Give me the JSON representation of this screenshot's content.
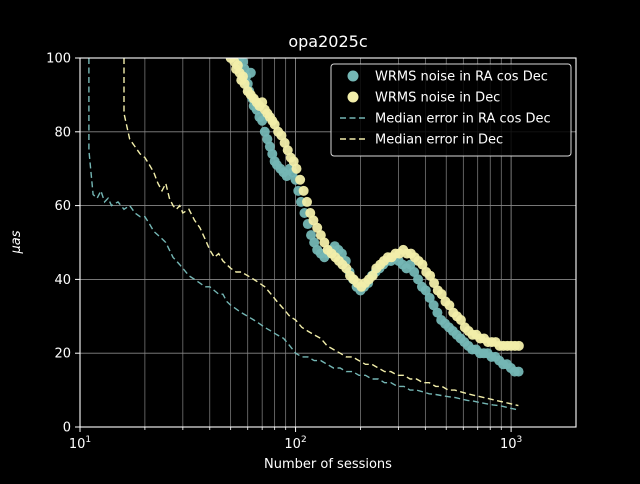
{
  "window": {
    "background": "#000000"
  },
  "chart_data": {
    "type": "scatter",
    "title": "opa2025c",
    "xlabel": "Number of sessions",
    "ylabel": "μas",
    "x_scale": "log",
    "xlim": [
      10,
      2000
    ],
    "ylim": [
      0,
      100
    ],
    "x_ticks": [
      10,
      100,
      1000
    ],
    "y_ticks": [
      0,
      20,
      40,
      60,
      80,
      100
    ],
    "grid": true,
    "legend_position": "upper right",
    "style": {
      "background": "#000000",
      "text_color": "#ffffff",
      "grid_color": "#888888",
      "spine_color": "#ffffff",
      "legend_edge": "#d9d9d9",
      "legend_fill": "#000000",
      "teal": "#74b6b4",
      "yellow": "#f2eeaa"
    },
    "series": [
      {
        "name": "WRMS noise in RA cos Dec",
        "kind": "scatter",
        "color": "#74b6b4",
        "points": [
          [
            55,
            100
          ],
          [
            57,
            99
          ],
          [
            58,
            97
          ],
          [
            59,
            95
          ],
          [
            60,
            93
          ],
          [
            61,
            91
          ],
          [
            62,
            96
          ],
          [
            63,
            89
          ],
          [
            64,
            87
          ],
          [
            65,
            88
          ],
          [
            66,
            86
          ],
          [
            68,
            84
          ],
          [
            70,
            83
          ],
          [
            72,
            80
          ],
          [
            74,
            78
          ],
          [
            76,
            76
          ],
          [
            78,
            74
          ],
          [
            80,
            72
          ],
          [
            82,
            71
          ],
          [
            85,
            70
          ],
          [
            88,
            69
          ],
          [
            91,
            68
          ],
          [
            94,
            70
          ],
          [
            97,
            69
          ],
          [
            100,
            67
          ],
          [
            103,
            64
          ],
          [
            106,
            61
          ],
          [
            110,
            58
          ],
          [
            114,
            55
          ],
          [
            118,
            52
          ],
          [
            122,
            50
          ],
          [
            126,
            48
          ],
          [
            131,
            47
          ],
          [
            136,
            46
          ],
          [
            141,
            47
          ],
          [
            146,
            48
          ],
          [
            152,
            49
          ],
          [
            158,
            48
          ],
          [
            164,
            47
          ],
          [
            171,
            45
          ],
          [
            178,
            42
          ],
          [
            185,
            40
          ],
          [
            192,
            38
          ],
          [
            200,
            37
          ],
          [
            208,
            38
          ],
          [
            217,
            39
          ],
          [
            226,
            41
          ],
          [
            235,
            42
          ],
          [
            245,
            43
          ],
          [
            255,
            44
          ],
          [
            266,
            45
          ],
          [
            277,
            45
          ],
          [
            289,
            46
          ],
          [
            301,
            45
          ],
          [
            314,
            44
          ],
          [
            327,
            43
          ],
          [
            341,
            44
          ],
          [
            355,
            42
          ],
          [
            370,
            40
          ],
          [
            386,
            38
          ],
          [
            402,
            37
          ],
          [
            419,
            35
          ],
          [
            437,
            33
          ],
          [
            455,
            31
          ],
          [
            474,
            29
          ],
          [
            494,
            28
          ],
          [
            515,
            27
          ],
          [
            537,
            26
          ],
          [
            559,
            25
          ],
          [
            583,
            24
          ],
          [
            607,
            23
          ],
          [
            633,
            22
          ],
          [
            660,
            21
          ],
          [
            688,
            21
          ],
          [
            717,
            20
          ],
          [
            747,
            20
          ],
          [
            778,
            20
          ],
          [
            811,
            19
          ],
          [
            845,
            19
          ],
          [
            881,
            18
          ],
          [
            918,
            17
          ],
          [
            957,
            17
          ],
          [
            997,
            16
          ],
          [
            1039,
            15
          ],
          [
            1083,
            15
          ]
        ]
      },
      {
        "name": "WRMS noise in Dec",
        "kind": "scatter",
        "color": "#f2eeaa",
        "points": [
          [
            50,
            100
          ],
          [
            52,
            99
          ],
          [
            53,
            97
          ],
          [
            54,
            98
          ],
          [
            55,
            96
          ],
          [
            56,
            94
          ],
          [
            57,
            95
          ],
          [
            58,
            93
          ],
          [
            60,
            91
          ],
          [
            62,
            90
          ],
          [
            64,
            89
          ],
          [
            66,
            88
          ],
          [
            68,
            87
          ],
          [
            70,
            88
          ],
          [
            72,
            86
          ],
          [
            74,
            85
          ],
          [
            76,
            84
          ],
          [
            78,
            83
          ],
          [
            80,
            82
          ],
          [
            83,
            80
          ],
          [
            86,
            79
          ],
          [
            89,
            77
          ],
          [
            92,
            75
          ],
          [
            95,
            73
          ],
          [
            98,
            72
          ],
          [
            101,
            70
          ],
          [
            105,
            67
          ],
          [
            109,
            64
          ],
          [
            113,
            61
          ],
          [
            117,
            58
          ],
          [
            121,
            56
          ],
          [
            126,
            54
          ],
          [
            131,
            52
          ],
          [
            136,
            50
          ],
          [
            141,
            48
          ],
          [
            147,
            47
          ],
          [
            153,
            46
          ],
          [
            159,
            45
          ],
          [
            165,
            44
          ],
          [
            172,
            43
          ],
          [
            179,
            41
          ],
          [
            186,
            40
          ],
          [
            194,
            39
          ],
          [
            202,
            38
          ],
          [
            210,
            39
          ],
          [
            219,
            40
          ],
          [
            228,
            41
          ],
          [
            237,
            43
          ],
          [
            247,
            44
          ],
          [
            257,
            45
          ],
          [
            268,
            46
          ],
          [
            279,
            46
          ],
          [
            291,
            47
          ],
          [
            303,
            47
          ],
          [
            316,
            48
          ],
          [
            329,
            47
          ],
          [
            343,
            47
          ],
          [
            357,
            46
          ],
          [
            372,
            45
          ],
          [
            388,
            44
          ],
          [
            404,
            42
          ],
          [
            421,
            41
          ],
          [
            439,
            39
          ],
          [
            457,
            37
          ],
          [
            476,
            36
          ],
          [
            496,
            34
          ],
          [
            517,
            33
          ],
          [
            539,
            31
          ],
          [
            561,
            30
          ],
          [
            585,
            29
          ],
          [
            610,
            27
          ],
          [
            635,
            26
          ],
          [
            662,
            25
          ],
          [
            690,
            25
          ],
          [
            719,
            24
          ],
          [
            749,
            24
          ],
          [
            781,
            23
          ],
          [
            814,
            23
          ],
          [
            848,
            23
          ],
          [
            884,
            22
          ],
          [
            921,
            22
          ],
          [
            960,
            22
          ],
          [
            1000,
            22
          ],
          [
            1042,
            22
          ],
          [
            1086,
            22
          ]
        ]
      },
      {
        "name": "Median error in RA cos Dec",
        "kind": "dashed-line",
        "color": "#74b6b4",
        "points": [
          [
            11,
            100
          ],
          [
            11,
            75
          ],
          [
            11.5,
            63
          ],
          [
            12,
            62
          ],
          [
            12.5,
            64
          ],
          [
            13,
            61
          ],
          [
            13.5,
            62
          ],
          [
            14,
            60
          ],
          [
            15,
            61
          ],
          [
            16,
            59
          ],
          [
            17,
            60
          ],
          [
            18,
            58
          ],
          [
            19,
            57
          ],
          [
            20,
            57
          ],
          [
            21,
            55
          ],
          [
            22,
            53
          ],
          [
            23,
            52
          ],
          [
            24,
            51
          ],
          [
            25,
            50
          ],
          [
            26,
            48
          ],
          [
            27,
            46
          ],
          [
            28,
            45
          ],
          [
            29,
            44
          ],
          [
            30,
            43
          ],
          [
            32,
            41
          ],
          [
            34,
            40
          ],
          [
            36,
            39
          ],
          [
            38,
            38
          ],
          [
            40,
            38
          ],
          [
            42,
            37
          ],
          [
            44,
            36
          ],
          [
            46,
            36
          ],
          [
            48,
            34
          ],
          [
            50,
            33
          ],
          [
            53,
            32
          ],
          [
            56,
            31
          ],
          [
            60,
            30
          ],
          [
            64,
            29
          ],
          [
            68,
            28
          ],
          [
            72,
            27
          ],
          [
            77,
            26
          ],
          [
            82,
            25
          ],
          [
            88,
            24
          ],
          [
            94,
            22
          ],
          [
            100,
            20
          ],
          [
            107,
            19
          ],
          [
            114,
            19
          ],
          [
            122,
            18
          ],
          [
            131,
            18
          ],
          [
            140,
            17
          ],
          [
            150,
            16
          ],
          [
            161,
            16
          ],
          [
            172,
            15
          ],
          [
            184,
            15
          ],
          [
            197,
            14
          ],
          [
            211,
            14
          ],
          [
            226,
            13
          ],
          [
            242,
            13
          ],
          [
            259,
            12
          ],
          [
            277,
            12
          ],
          [
            297,
            11
          ],
          [
            318,
            11
          ],
          [
            340,
            10
          ],
          [
            364,
            10
          ],
          [
            390,
            9.5
          ],
          [
            417,
            9
          ],
          [
            447,
            8.8
          ],
          [
            478,
            8.5
          ],
          [
            512,
            8.2
          ],
          [
            548,
            8
          ],
          [
            587,
            7.6
          ],
          [
            628,
            7.2
          ],
          [
            672,
            7
          ],
          [
            719,
            6.6
          ],
          [
            770,
            6.3
          ],
          [
            824,
            6
          ],
          [
            882,
            5.8
          ],
          [
            944,
            5.4
          ],
          [
            1010,
            5
          ],
          [
            1081,
            4.6
          ]
        ]
      },
      {
        "name": "Median error in Dec",
        "kind": "dashed-line",
        "color": "#f2eeaa",
        "points": [
          [
            16,
            100
          ],
          [
            16,
            85
          ],
          [
            17,
            78
          ],
          [
            18,
            76
          ],
          [
            19,
            74
          ],
          [
            20,
            73
          ],
          [
            21,
            71
          ],
          [
            22,
            69
          ],
          [
            23,
            66
          ],
          [
            24,
            64
          ],
          [
            25,
            66
          ],
          [
            26,
            62
          ],
          [
            27,
            60
          ],
          [
            28,
            59
          ],
          [
            29,
            60
          ],
          [
            30,
            58
          ],
          [
            32,
            59
          ],
          [
            34,
            56
          ],
          [
            36,
            54
          ],
          [
            38,
            51
          ],
          [
            40,
            48
          ],
          [
            42,
            46
          ],
          [
            44,
            47
          ],
          [
            46,
            45
          ],
          [
            48,
            44
          ],
          [
            50,
            43
          ],
          [
            53,
            42
          ],
          [
            56,
            42
          ],
          [
            60,
            41
          ],
          [
            64,
            40
          ],
          [
            68,
            39
          ],
          [
            72,
            38
          ],
          [
            77,
            36
          ],
          [
            82,
            34
          ],
          [
            88,
            32
          ],
          [
            94,
            30
          ],
          [
            100,
            29
          ],
          [
            107,
            27
          ],
          [
            114,
            26
          ],
          [
            122,
            25
          ],
          [
            131,
            24
          ],
          [
            140,
            22
          ],
          [
            150,
            21
          ],
          [
            161,
            20
          ],
          [
            172,
            19
          ],
          [
            184,
            19
          ],
          [
            197,
            18
          ],
          [
            211,
            17
          ],
          [
            226,
            17
          ],
          [
            242,
            16
          ],
          [
            259,
            15
          ],
          [
            277,
            15
          ],
          [
            297,
            14
          ],
          [
            318,
            14
          ],
          [
            340,
            13
          ],
          [
            364,
            13
          ],
          [
            390,
            12
          ],
          [
            417,
            12
          ],
          [
            447,
            11
          ],
          [
            478,
            11
          ],
          [
            512,
            10
          ],
          [
            548,
            10
          ],
          [
            587,
            9.5
          ],
          [
            628,
            9
          ],
          [
            672,
            8.6
          ],
          [
            719,
            8.2
          ],
          [
            770,
            7.8
          ],
          [
            824,
            7.4
          ],
          [
            882,
            7
          ],
          [
            944,
            6.6
          ],
          [
            1010,
            6.2
          ],
          [
            1081,
            5.8
          ]
        ]
      }
    ]
  }
}
